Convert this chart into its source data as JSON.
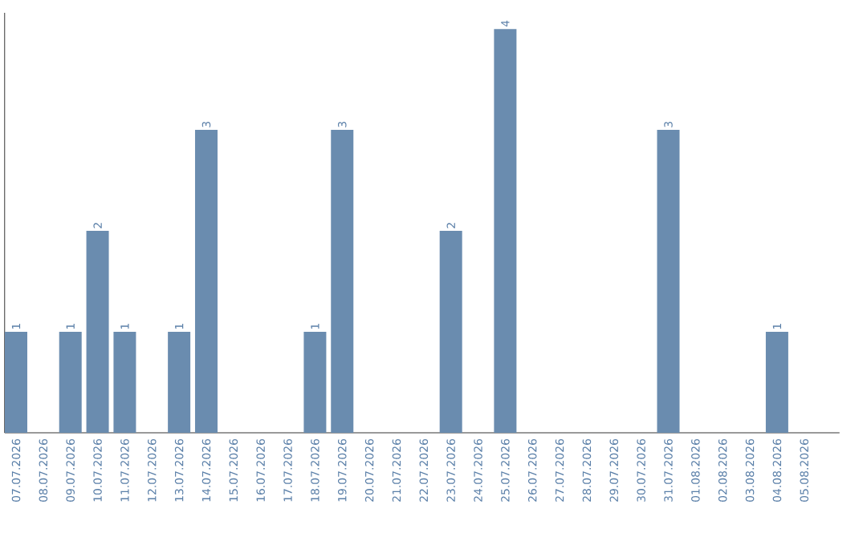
{
  "chart_data": {
    "type": "bar",
    "categories": [
      "07.07.2026",
      "08.07.2026",
      "09.07.2026",
      "10.07.2026",
      "11.07.2026",
      "12.07.2026",
      "13.07.2026",
      "14.07.2026",
      "15.07.2026",
      "16.07.2026",
      "17.07.2026",
      "18.07.2026",
      "19.07.2026",
      "20.07.2026",
      "21.07.2026",
      "22.07.2026",
      "23.07.2026",
      "24.07.2026",
      "25.07.2026",
      "26.07.2026",
      "27.07.2026",
      "28.07.2026",
      "29.07.2026",
      "30.07.2026",
      "31.07.2026",
      "01.08.2026",
      "02.08.2026",
      "03.08.2026",
      "04.08.2026",
      "05.08.2026"
    ],
    "values": [
      1,
      0,
      1,
      2,
      1,
      0,
      1,
      3,
      0,
      0,
      0,
      1,
      3,
      0,
      0,
      0,
      2,
      0,
      4,
      0,
      0,
      0,
      0,
      0,
      3,
      0,
      0,
      0,
      1,
      0
    ],
    "value_labels": [
      "1",
      null,
      "1",
      "2",
      "1",
      null,
      "1",
      "3",
      null,
      null,
      null,
      "1",
      "3",
      null,
      null,
      null,
      "2",
      null,
      "4",
      null,
      null,
      null,
      null,
      null,
      "3",
      null,
      null,
      null,
      "1",
      null
    ],
    "color": "#6a8caf"
  }
}
